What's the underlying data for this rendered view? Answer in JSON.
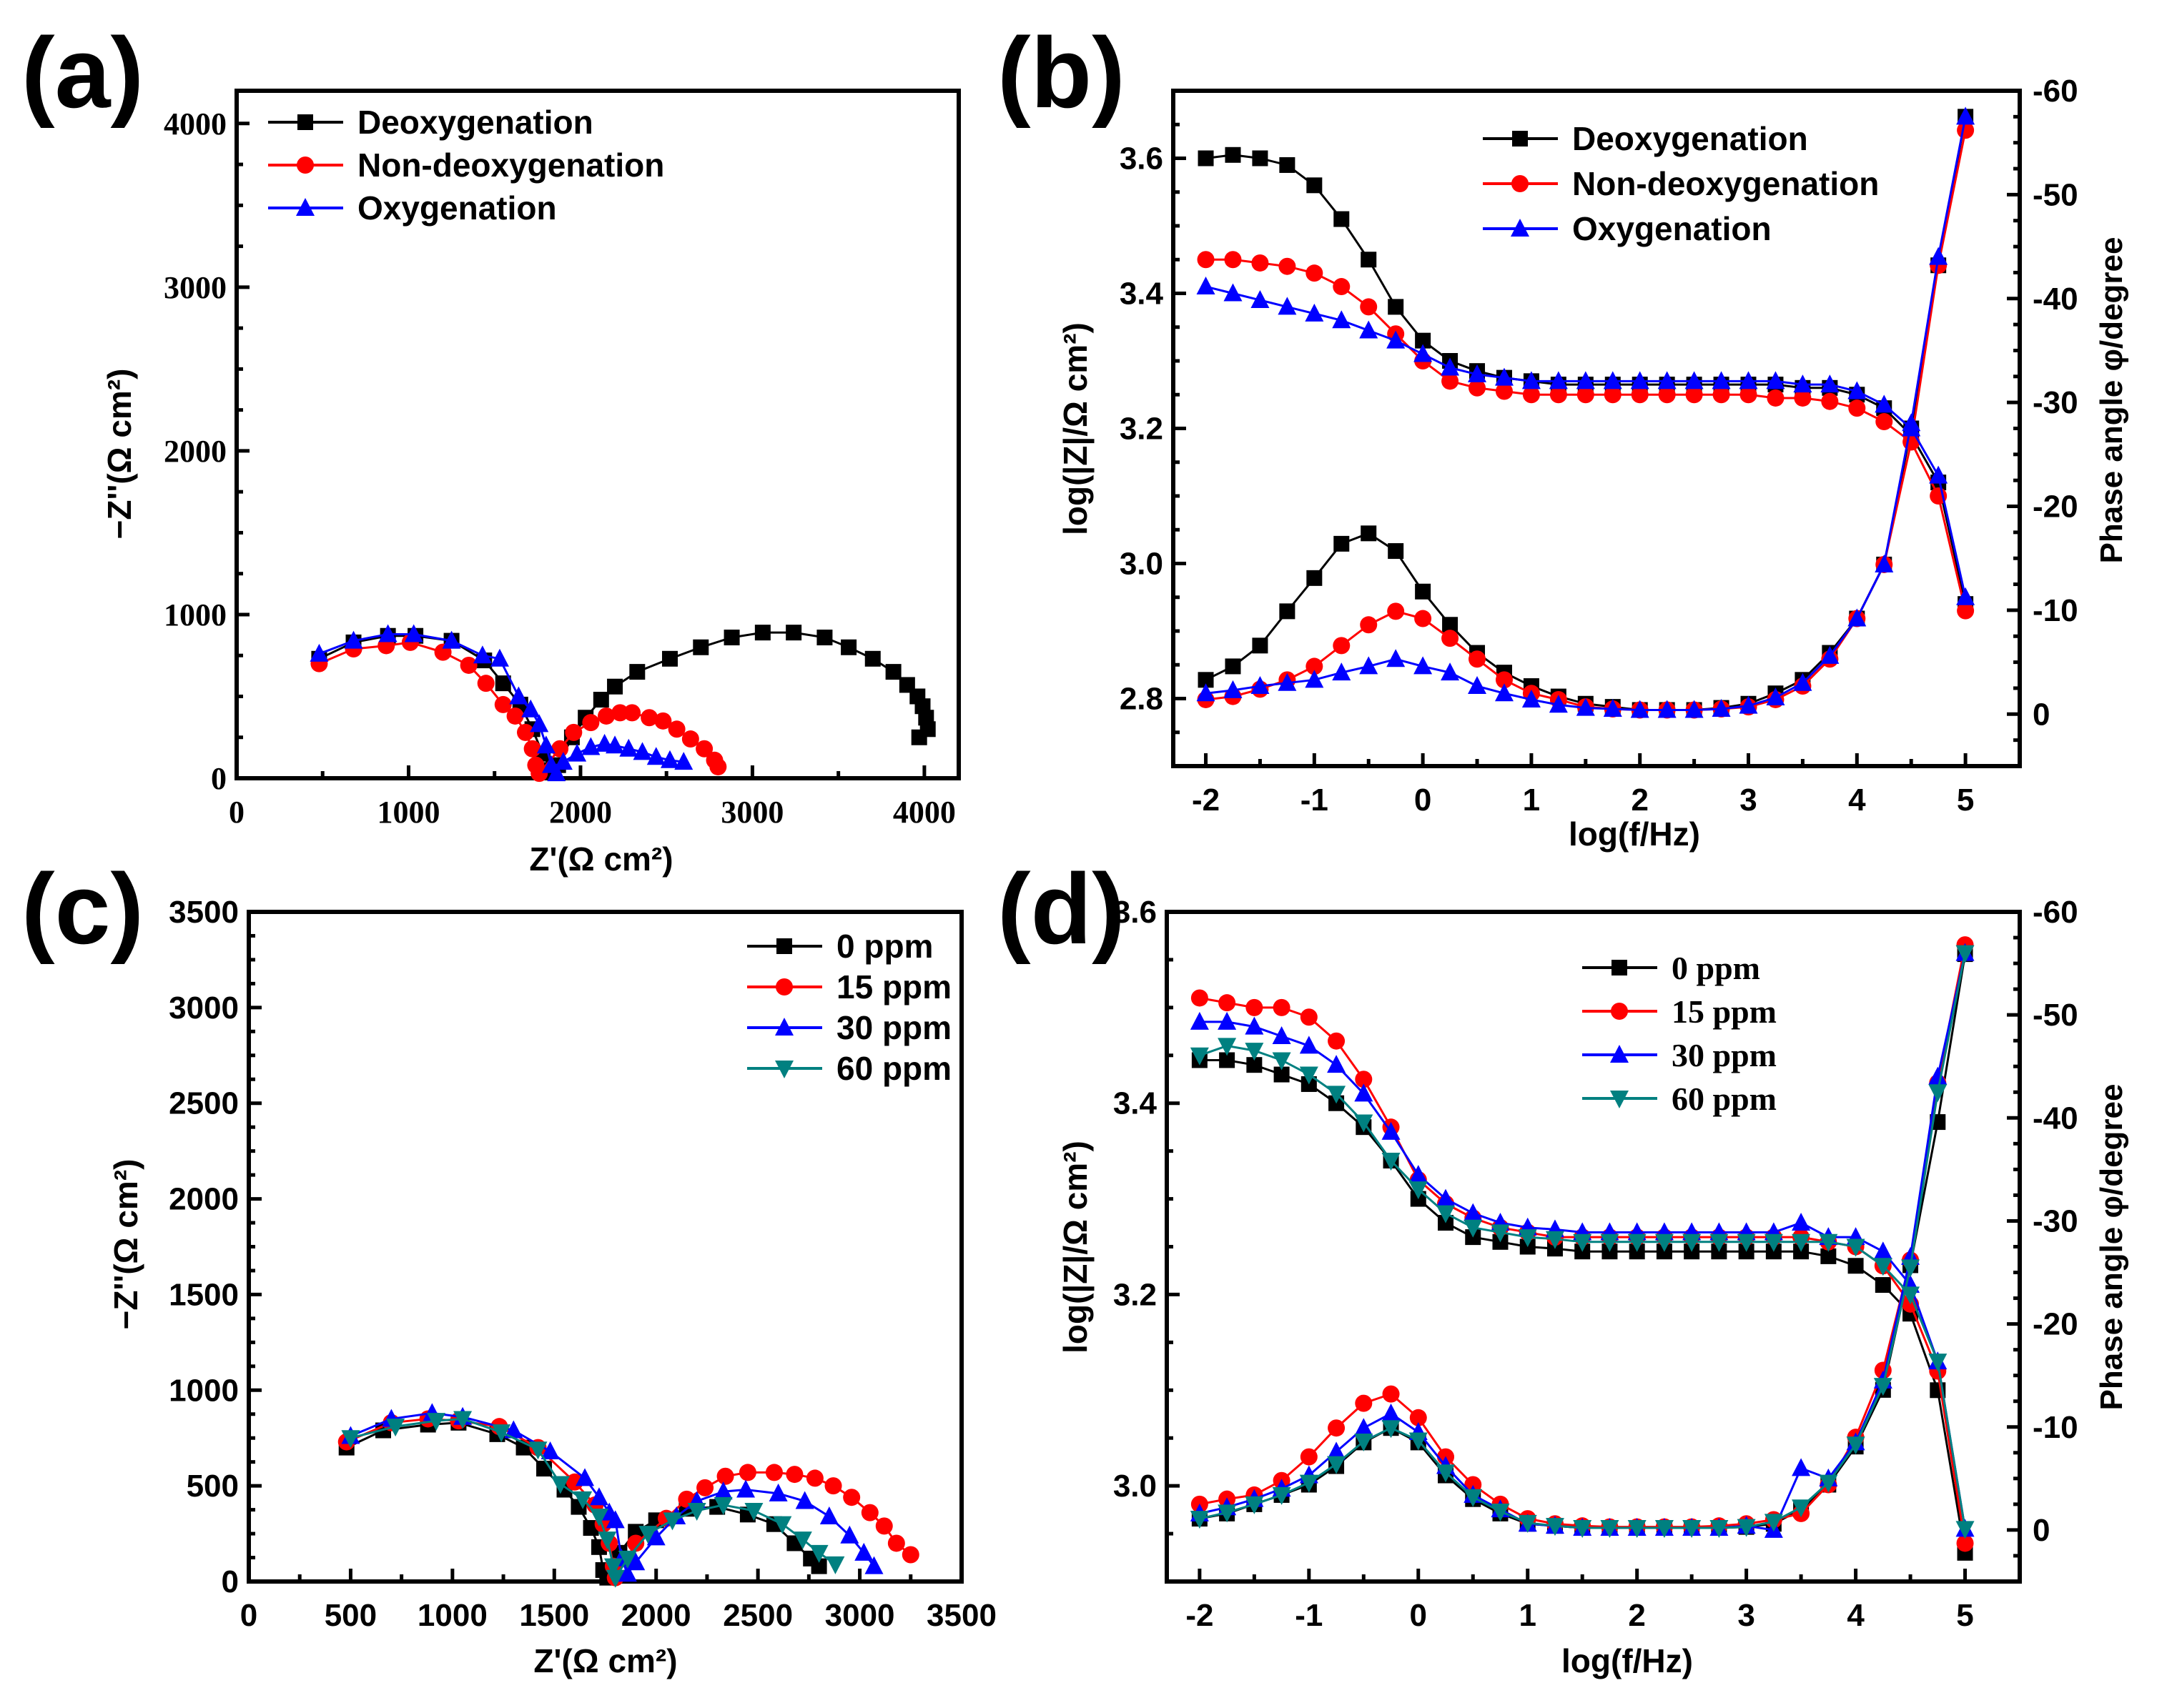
{
  "chart_data": [
    {
      "id": "a",
      "panel_label": "(a)",
      "type": "scatter",
      "xlabel": "Z'(Ω cm²)",
      "ylabel": "−Z''(Ω cm²)",
      "xlim": [
        0,
        4200
      ],
      "ylim": [
        0,
        4200
      ],
      "xticks": [
        0,
        1000,
        2000,
        3000,
        4000
      ],
      "yticks": [
        0,
        1000,
        2000,
        3000,
        4000
      ],
      "legend_position": "top-left",
      "series": [
        {
          "name": "Deoxygenation",
          "color": "#000000",
          "marker": "square",
          "x": [
            480,
            680,
            880,
            1040,
            1250,
            1440,
            1550,
            1650,
            1720,
            1780,
            1830,
            1870,
            1950,
            2030,
            2120,
            2200,
            2330,
            2520,
            2700,
            2880,
            3060,
            3240,
            3420,
            3560,
            3700,
            3820,
            3900,
            3960,
            3990,
            4010,
            4020,
            3970
          ],
          "y": [
            730,
            830,
            870,
            870,
            840,
            720,
            580,
            450,
            300,
            150,
            50,
            80,
            250,
            370,
            480,
            560,
            650,
            730,
            800,
            860,
            890,
            890,
            860,
            800,
            730,
            650,
            570,
            500,
            440,
            370,
            300,
            250
          ]
        },
        {
          "name": "Non-deoxygenation",
          "color": "#ff0000",
          "marker": "circle",
          "x": [
            480,
            680,
            870,
            1010,
            1200,
            1350,
            1450,
            1550,
            1620,
            1680,
            1720,
            1740,
            1760,
            1880,
            1960,
            2060,
            2150,
            2230,
            2300,
            2400,
            2480,
            2560,
            2640,
            2720,
            2780,
            2800
          ],
          "y": [
            700,
            790,
            810,
            830,
            770,
            690,
            580,
            450,
            380,
            280,
            180,
            80,
            30,
            180,
            280,
            340,
            380,
            400,
            400,
            370,
            350,
            300,
            240,
            180,
            110,
            70
          ]
        },
        {
          "name": "Oxygenation",
          "color": "#0000ff",
          "marker": "triangle",
          "x": [
            480,
            680,
            880,
            1030,
            1250,
            1430,
            1530,
            1640,
            1710,
            1760,
            1800,
            1830,
            1860,
            1900,
            1980,
            2060,
            2140,
            2200,
            2280,
            2360,
            2440,
            2520,
            2600
          ],
          "y": [
            760,
            840,
            880,
            880,
            840,
            750,
            730,
            500,
            420,
            330,
            200,
            80,
            30,
            100,
            150,
            190,
            210,
            200,
            180,
            160,
            130,
            110,
            100
          ]
        }
      ]
    },
    {
      "id": "b",
      "panel_label": "(b)",
      "type": "line",
      "xlabel": "log(f/Hz)",
      "ylabel": "log(|Z|/Ω cm²)",
      "y2label": "Phase angle φ/degree",
      "xlim": [
        -2.3,
        5.5
      ],
      "ylim": [
        2.7,
        3.7
      ],
      "y2lim": [
        5,
        -60
      ],
      "xticks": [
        -2,
        -1,
        0,
        1,
        2,
        3,
        4,
        5
      ],
      "yticks": [
        "2.8",
        "3.0",
        "3.2",
        "3.4",
        "3.6"
      ],
      "y2ticks": [
        0,
        -10,
        -20,
        -30,
        -40,
        -50,
        -60
      ],
      "legend_position": "top-center",
      "x": [
        -2,
        -1.75,
        -1.5,
        -1.25,
        -1,
        -0.75,
        -0.5,
        -0.25,
        0,
        0.25,
        0.5,
        0.75,
        1,
        1.25,
        1.5,
        1.75,
        2,
        2.25,
        2.5,
        2.75,
        3,
        3.25,
        3.5,
        3.75,
        4,
        4.25,
        4.5,
        4.75,
        5
      ],
      "series": [
        {
          "name": "Deoxygenation",
          "color": "#000000",
          "marker": "square",
          "logZ": [
            3.6,
            3.605,
            3.6,
            3.59,
            3.56,
            3.51,
            3.45,
            3.38,
            3.33,
            3.3,
            3.285,
            3.275,
            3.27,
            3.265,
            3.265,
            3.265,
            3.265,
            3.265,
            3.265,
            3.265,
            3.265,
            3.265,
            3.26,
            3.26,
            3.25,
            3.23,
            3.19,
            3.12,
            2.94
          ],
          "phase": [
            -3.3,
            -4.6,
            -6.6,
            -9.9,
            -13.1,
            -16.4,
            -17.4,
            -15.7,
            -11.8,
            -8.6,
            -5.9,
            -4.0,
            -2.7,
            -1.7,
            -1.0,
            -0.7,
            -0.4,
            -0.4,
            -0.4,
            -0.6,
            -1.0,
            -2.0,
            -3.3,
            -5.9,
            -9.2,
            -14.4,
            -27.5,
            -43.2,
            -57.5
          ]
        },
        {
          "name": "Non-deoxygenation",
          "color": "#ff0000",
          "marker": "circle",
          "logZ": [
            3.45,
            3.45,
            3.445,
            3.44,
            3.43,
            3.41,
            3.38,
            3.34,
            3.3,
            3.27,
            3.26,
            3.255,
            3.25,
            3.25,
            3.25,
            3.25,
            3.25,
            3.25,
            3.25,
            3.25,
            3.25,
            3.245,
            3.245,
            3.24,
            3.23,
            3.21,
            3.18,
            3.1,
            2.93
          ],
          "phase": [
            -1.4,
            -1.7,
            -2.4,
            -3.3,
            -4.6,
            -6.6,
            -8.6,
            -9.9,
            -9.2,
            -7.3,
            -5.3,
            -3.3,
            -2.0,
            -1.4,
            -0.7,
            -0.5,
            -0.4,
            -0.4,
            -0.4,
            -0.5,
            -0.7,
            -1.4,
            -2.7,
            -5.3,
            -9.2,
            -14.4,
            -26.2,
            -43.2,
            -56.2
          ]
        },
        {
          "name": "Oxygenation",
          "color": "#0000ff",
          "marker": "triangle",
          "logZ": [
            3.41,
            3.4,
            3.39,
            3.38,
            3.37,
            3.36,
            3.345,
            3.33,
            3.31,
            3.29,
            3.28,
            3.275,
            3.27,
            3.27,
            3.27,
            3.27,
            3.27,
            3.27,
            3.27,
            3.27,
            3.27,
            3.27,
            3.265,
            3.265,
            3.255,
            3.235,
            3.2,
            3.13,
            2.95
          ],
          "phase": [
            -2.0,
            -2.3,
            -2.7,
            -3.0,
            -3.3,
            -4.0,
            -4.6,
            -5.3,
            -4.6,
            -4.0,
            -2.7,
            -2.0,
            -1.4,
            -0.9,
            -0.6,
            -0.5,
            -0.4,
            -0.4,
            -0.4,
            -0.5,
            -0.8,
            -1.6,
            -3.0,
            -5.6,
            -9.2,
            -14.4,
            -28.0,
            -44.0,
            -57.5
          ]
        }
      ]
    },
    {
      "id": "c",
      "panel_label": "(c)",
      "type": "scatter",
      "xlabel": "Z'(Ω cm²)",
      "ylabel": "−Z''(Ω cm²)",
      "xlim": [
        0,
        3500
      ],
      "ylim": [
        0,
        3500
      ],
      "xticks": [
        0,
        500,
        1000,
        1500,
        2000,
        2500,
        3000,
        3500
      ],
      "yticks": [
        0,
        500,
        1000,
        1500,
        2000,
        2500,
        3000,
        3500
      ],
      "legend_position": "top-right",
      "series": [
        {
          "name": "0 ppm",
          "color": "#000000",
          "marker": "square",
          "x": [
            480,
            660,
            880,
            1030,
            1220,
            1350,
            1450,
            1550,
            1620,
            1680,
            1720,
            1740,
            1760,
            1820,
            1900,
            2000,
            2150,
            2300,
            2450,
            2580,
            2680,
            2760,
            2800
          ],
          "y": [
            700,
            790,
            820,
            830,
            770,
            700,
            590,
            480,
            390,
            280,
            180,
            60,
            20,
            150,
            260,
            320,
            380,
            390,
            350,
            300,
            200,
            120,
            80
          ]
        },
        {
          "name": "15 ppm",
          "color": "#ff0000",
          "marker": "circle",
          "x": [
            480,
            700,
            880,
            1030,
            1230,
            1420,
            1600,
            1700,
            1740,
            1770,
            1790,
            1800,
            1900,
            2050,
            2150,
            2240,
            2340,
            2450,
            2580,
            2680,
            2780,
            2870,
            2960,
            3050,
            3120,
            3180,
            3250
          ],
          "y": [
            730,
            830,
            850,
            840,
            810,
            700,
            520,
            400,
            300,
            200,
            80,
            20,
            200,
            330,
            430,
            490,
            550,
            570,
            570,
            560,
            540,
            500,
            440,
            360,
            290,
            200,
            140
          ]
        },
        {
          "name": "30 ppm",
          "color": "#0000ff",
          "marker": "triangle",
          "x": [
            500,
            700,
            900,
            1050,
            1300,
            1480,
            1650,
            1720,
            1770,
            1800,
            1830,
            1860,
            1900,
            2000,
            2100,
            2200,
            2330,
            2440,
            2600,
            2730,
            2850,
            2950,
            3020,
            3070
          ],
          "y": [
            760,
            850,
            880,
            860,
            790,
            680,
            540,
            440,
            360,
            320,
            120,
            40,
            100,
            230,
            340,
            420,
            470,
            480,
            460,
            420,
            340,
            240,
            150,
            80
          ]
        },
        {
          "name": "60 ppm",
          "color": "#008080",
          "marker": "triangle-down",
          "x": [
            500,
            720,
            920,
            1050,
            1240,
            1420,
            1530,
            1640,
            1720,
            1760,
            1790,
            1800,
            1860,
            1960,
            2080,
            2200,
            2330,
            2480,
            2620,
            2720,
            2800,
            2880
          ],
          "y": [
            750,
            810,
            840,
            850,
            780,
            690,
            510,
            430,
            340,
            220,
            80,
            20,
            120,
            250,
            320,
            370,
            400,
            370,
            300,
            220,
            150,
            90
          ]
        }
      ]
    },
    {
      "id": "d",
      "panel_label": "(d)",
      "type": "line",
      "xlabel": "log(f/Hz)",
      "ylabel": "log(|Z|/Ω cm²)",
      "y2label": "Phase angle φ/degree",
      "xlim": [
        -2.3,
        5.5
      ],
      "ylim": [
        2.9,
        3.6
      ],
      "y2lim": [
        5,
        -60
      ],
      "xticks": [
        -2,
        -1,
        0,
        1,
        2,
        3,
        4,
        5
      ],
      "yticks": [
        "3.0",
        "3.2",
        "3.4",
        "3.6"
      ],
      "y2ticks": [
        0,
        -10,
        -20,
        -30,
        -40,
        -50,
        -60
      ],
      "legend_position": "top-center",
      "x": [
        -2,
        -1.75,
        -1.5,
        -1.25,
        -1,
        -0.75,
        -0.5,
        -0.25,
        0,
        0.25,
        0.5,
        0.75,
        1,
        1.25,
        1.5,
        1.75,
        2,
        2.25,
        2.5,
        2.75,
        3,
        3.25,
        3.5,
        3.75,
        4,
        4.25,
        4.5,
        4.75,
        5
      ],
      "series": [
        {
          "name": "0 ppm",
          "color": "#000000",
          "marker": "square",
          "logZ": [
            3.445,
            3.445,
            3.44,
            3.43,
            3.42,
            3.4,
            3.375,
            3.34,
            3.3,
            3.275,
            3.26,
            3.255,
            3.25,
            3.248,
            3.245,
            3.245,
            3.245,
            3.245,
            3.245,
            3.245,
            3.245,
            3.245,
            3.245,
            3.24,
            3.23,
            3.21,
            3.18,
            3.1,
            2.93
          ],
          "phase": [
            -1.1,
            -1.6,
            -2.5,
            -3.4,
            -4.4,
            -6.2,
            -8.5,
            -9.9,
            -8.5,
            -5.3,
            -3.0,
            -1.6,
            -0.6,
            -0.4,
            -0.2,
            -0.2,
            -0.2,
            -0.2,
            -0.2,
            -0.2,
            -0.3,
            -0.6,
            -2.0,
            -4.4,
            -8.1,
            -13.6,
            -25.7,
            -39.6,
            -55.9
          ]
        },
        {
          "name": "15 ppm",
          "color": "#ff0000",
          "marker": "circle",
          "logZ": [
            3.51,
            3.505,
            3.5,
            3.5,
            3.49,
            3.465,
            3.425,
            3.375,
            3.32,
            3.295,
            3.28,
            3.27,
            3.265,
            3.26,
            3.26,
            3.26,
            3.26,
            3.26,
            3.26,
            3.26,
            3.26,
            3.26,
            3.26,
            3.255,
            3.25,
            3.23,
            3.19,
            3.12,
            2.94
          ],
          "phase": [
            -2.5,
            -3.0,
            -3.4,
            -4.8,
            -7.1,
            -9.9,
            -12.3,
            -13.2,
            -10.9,
            -7.1,
            -4.4,
            -2.5,
            -1.1,
            -0.6,
            -0.4,
            -0.3,
            -0.3,
            -0.3,
            -0.3,
            -0.4,
            -0.6,
            -1.0,
            -1.6,
            -4.4,
            -9.0,
            -15.5,
            -26.2,
            -43.4,
            -56.8
          ]
        },
        {
          "name": "30 ppm",
          "color": "#0000ff",
          "marker": "triangle",
          "logZ": [
            3.485,
            3.485,
            3.48,
            3.47,
            3.46,
            3.44,
            3.41,
            3.37,
            3.325,
            3.3,
            3.285,
            3.275,
            3.27,
            3.268,
            3.265,
            3.265,
            3.265,
            3.265,
            3.265,
            3.265,
            3.265,
            3.265,
            3.275,
            3.26,
            3.26,
            3.245,
            3.21,
            3.13,
            2.955
          ],
          "phase": [
            -1.6,
            -2.2,
            -3.0,
            -4.0,
            -5.3,
            -7.6,
            -9.9,
            -11.3,
            -9.5,
            -6.2,
            -3.4,
            -2.0,
            -0.6,
            -0.4,
            -0.2,
            -0.2,
            -0.2,
            -0.2,
            -0.2,
            -0.2,
            -0.4,
            0.0,
            -6.0,
            -5.0,
            -8.5,
            -14.5,
            -26.5,
            -44.0,
            -56.0
          ]
        },
        {
          "name": "60 ppm",
          "color": "#008080",
          "marker": "triangle-down",
          "logZ": [
            3.45,
            3.46,
            3.455,
            3.445,
            3.43,
            3.41,
            3.38,
            3.34,
            3.31,
            3.285,
            3.27,
            3.265,
            3.26,
            3.258,
            3.255,
            3.255,
            3.255,
            3.255,
            3.255,
            3.255,
            3.255,
            3.255,
            3.255,
            3.255,
            3.25,
            3.23,
            3.2,
            3.13,
            2.955
          ],
          "phase": [
            -1.1,
            -1.7,
            -2.5,
            -3.4,
            -4.6,
            -6.4,
            -8.6,
            -9.9,
            -8.7,
            -5.6,
            -3.2,
            -1.8,
            -0.7,
            -0.4,
            -0.2,
            -0.2,
            -0.2,
            -0.2,
            -0.2,
            -0.2,
            -0.3,
            -0.8,
            -2.2,
            -4.6,
            -8.3,
            -14.0,
            -25.5,
            -42.5,
            -56.0
          ]
        }
      ]
    }
  ]
}
